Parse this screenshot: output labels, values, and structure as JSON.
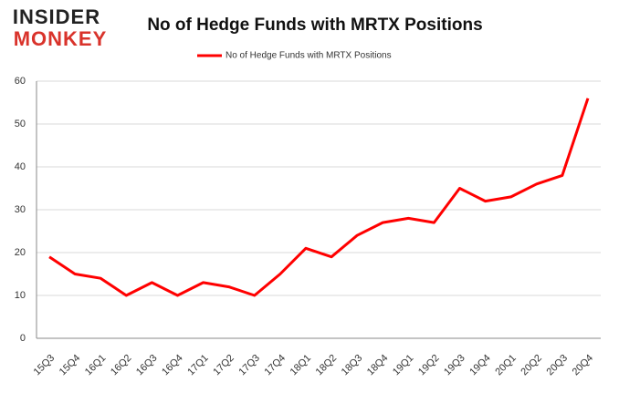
{
  "chart_data": {
    "type": "line",
    "title": "No of Hedge Funds with MRTX Positions",
    "logo": [
      "INSIDER",
      "MONKEY"
    ],
    "categories": [
      "15Q3",
      "15Q4",
      "16Q1",
      "16Q2",
      "16Q3",
      "16Q4",
      "17Q1",
      "17Q2",
      "17Q3",
      "17Q4",
      "18Q1",
      "18Q2",
      "18Q3",
      "18Q4",
      "19Q1",
      "19Q2",
      "19Q3",
      "19Q4",
      "20Q1",
      "20Q2",
      "20Q3",
      "20Q4"
    ],
    "series": [
      {
        "name": "No of Hedge Funds with MRTX Positions",
        "color": "#ff0000",
        "values": [
          19,
          15,
          14,
          10,
          13,
          10,
          13,
          12,
          10,
          15,
          21,
          19,
          24,
          27,
          28,
          27,
          35,
          32,
          33,
          36,
          38,
          56
        ]
      }
    ],
    "ylim": [
      0,
      60
    ],
    "yticks": [
      0,
      10,
      20,
      30,
      40,
      50,
      60
    ],
    "grid": true,
    "legend": "top"
  }
}
